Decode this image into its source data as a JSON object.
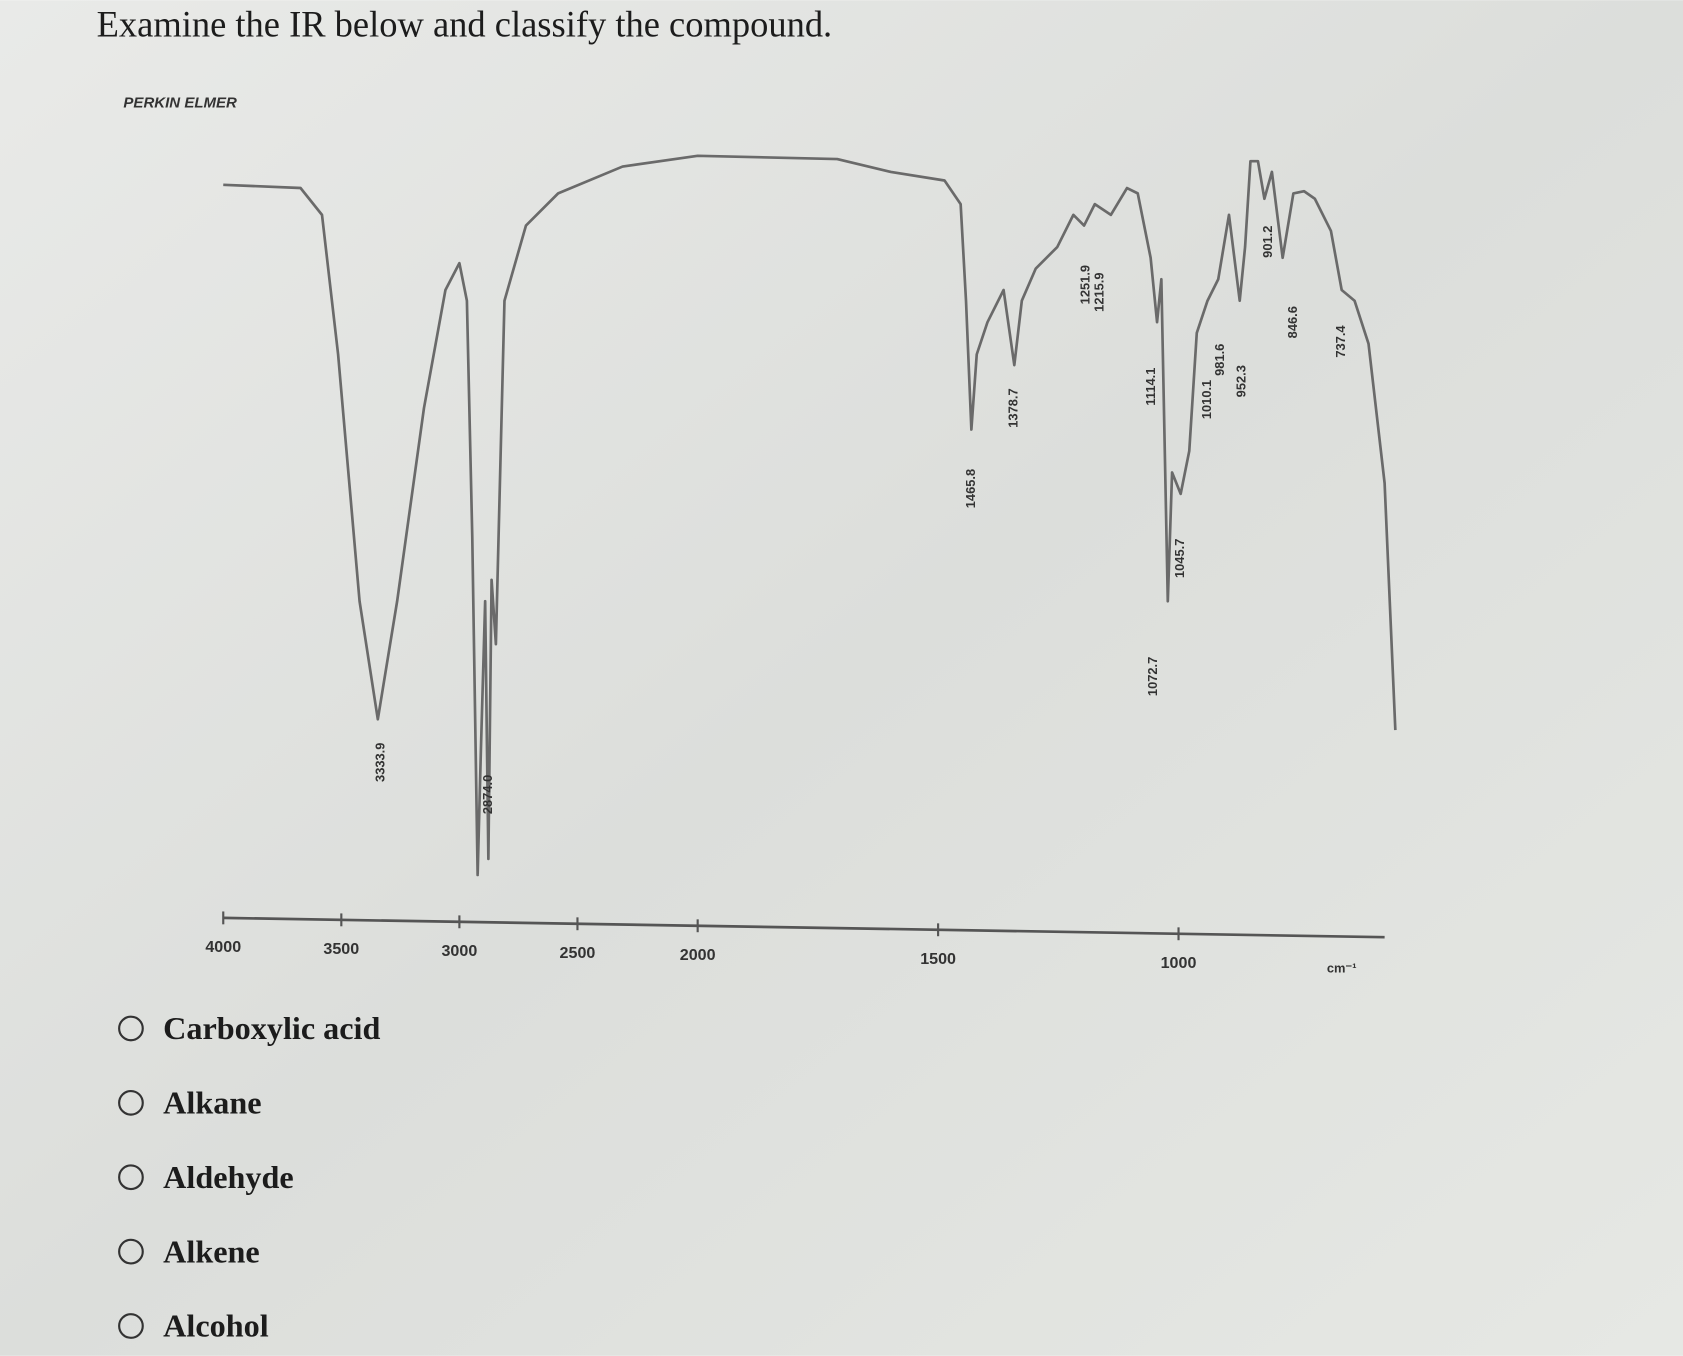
{
  "question": "Examine the IR below and classify the compound.",
  "spectrum": {
    "brand": "PERKIN ELMER",
    "x_ticks": [
      "4000",
      "3500",
      "3000",
      "2500",
      "2000",
      "1500",
      "1000"
    ],
    "unit": "cm⁻¹",
    "peaks": [
      "3333.9",
      "2874.0",
      "1465.8",
      "1378.7",
      "1251.9",
      "1215.9",
      "1114.1",
      "1072.7",
      "1045.7",
      "1010.1",
      "981.6",
      "952.3",
      "901.2",
      "846.6",
      "737.4"
    ]
  },
  "options": [
    "Carboxylic acid",
    "Alkane",
    "Aldehyde",
    "Alkene",
    "Alcohol"
  ]
}
